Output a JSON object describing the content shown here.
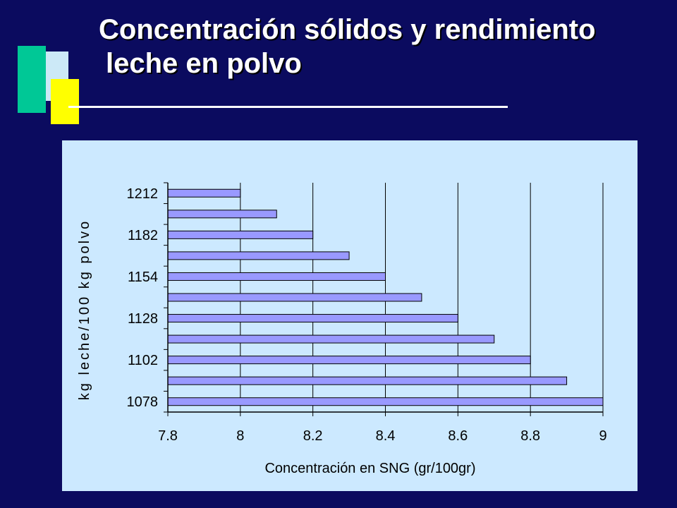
{
  "slide": {
    "title_line1": "Concentración sólidos y rendimiento",
    "title_line2": "leche en polvo"
  },
  "colors": {
    "background": "#0b0b5f",
    "panel": "#cce9ff",
    "bar_fill": "#9999ff",
    "title": "#ffffff"
  },
  "chart_data": {
    "type": "bar",
    "orientation": "horizontal",
    "xlabel": "Concentración en SNG (gr/100gr)",
    "ylabel": "kg leche/100 kg polvo",
    "xlim": [
      7.8,
      9
    ],
    "xticks": [
      "7.8",
      "8",
      "8.2",
      "8.4",
      "8.6",
      "8.8",
      "9"
    ],
    "grid": true,
    "categories": [
      "1212",
      "",
      "1182",
      "",
      "1154",
      "",
      "1128",
      "",
      "1102",
      "",
      "1078"
    ],
    "values": [
      8.0,
      8.1,
      8.2,
      8.3,
      8.4,
      8.5,
      8.6,
      8.7,
      8.8,
      8.9,
      9.0
    ]
  }
}
